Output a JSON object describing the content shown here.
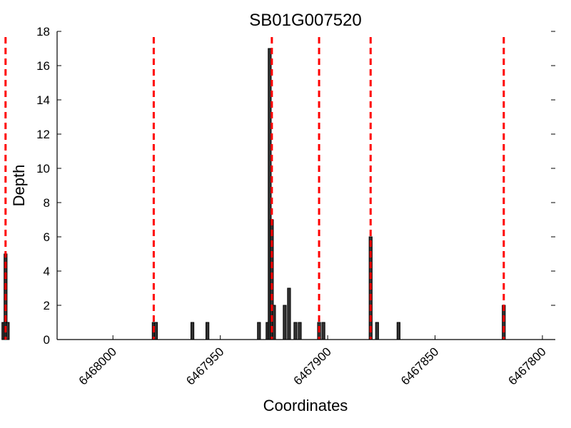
{
  "chart_data": {
    "type": "bar",
    "title": "SB01G007520",
    "xlabel": "Coordinates",
    "ylabel": "Depth",
    "x_reversed": true,
    "xlim": [
      6468026,
      6467794
    ],
    "ylim": [
      0,
      18
    ],
    "yticks": [
      0,
      2,
      4,
      6,
      8,
      10,
      12,
      14,
      16,
      18
    ],
    "xticks": [
      6468000,
      6467950,
      6467900,
      6467850,
      6467800
    ],
    "bar_color": "#333333",
    "bar_edge_color": "#000000",
    "boundary_color": "#ff0000",
    "boundaries": [
      6468050,
      6467981,
      6467926,
      6467904,
      6467880,
      6467818
    ],
    "bars": [
      {
        "x": 6468051,
        "value": 1
      },
      {
        "x": 6468050,
        "value": 5
      },
      {
        "x": 6468049,
        "value": 1
      },
      {
        "x": 6467981,
        "value": 1
      },
      {
        "x": 6467980,
        "value": 1
      },
      {
        "x": 6467963,
        "value": 1
      },
      {
        "x": 6467956,
        "value": 1
      },
      {
        "x": 6467932,
        "value": 1
      },
      {
        "x": 6467928,
        "value": 1
      },
      {
        "x": 6467927,
        "value": 17
      },
      {
        "x": 6467926,
        "value": 7
      },
      {
        "x": 6467925,
        "value": 2
      },
      {
        "x": 6467920,
        "value": 2
      },
      {
        "x": 6467918,
        "value": 3
      },
      {
        "x": 6467915,
        "value": 1
      },
      {
        "x": 6467913,
        "value": 1
      },
      {
        "x": 6467904,
        "value": 1
      },
      {
        "x": 6467902,
        "value": 1
      },
      {
        "x": 6467880,
        "value": 6
      },
      {
        "x": 6467877,
        "value": 1
      },
      {
        "x": 6467867,
        "value": 1
      },
      {
        "x": 6467818,
        "value": 2
      }
    ]
  }
}
